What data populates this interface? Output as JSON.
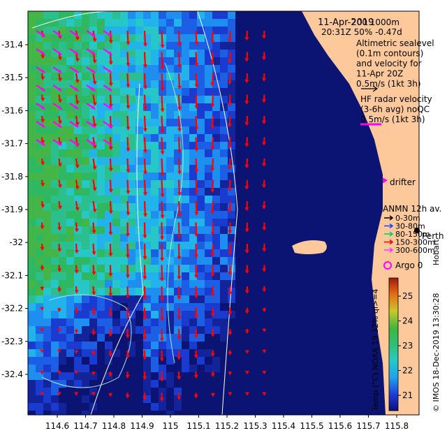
{
  "map": {
    "type": "ocean-sst-velocity-map",
    "date_header": "11-Apr-2019",
    "time_line": "20:31Z  50% -0.47d",
    "isobaths_label": "200  1000m",
    "altimetry_block": [
      "Altimetric sealevel",
      "(0.1m contours)",
      "and velocity for",
      "11-Apr 20Z",
      "0.5m/s (1kt 3h)"
    ],
    "hf_radar_block": [
      "HF radar velocity",
      "(3-6h avg) noQC",
      "0.5m/s (1kt 3h)"
    ],
    "drifter_label": "drifter",
    "anmn_title": "ANMN 12h av.",
    "anmn_depths": [
      "0-30m",
      "30-80m",
      "80-150m",
      "150-300m",
      "300-600m"
    ],
    "anmn_colors": [
      "#000000",
      "#1e3cff",
      "#00cc66",
      "#ff0000",
      "#ff33ff"
    ],
    "argo_label": "Argo 0",
    "city_label": "Perth",
    "side_credit": "Hobart",
    "colorbar_caption": "Temp (°C) NOAA 19 32% ql>=4",
    "colorbar_ticks": [
      "25",
      "24",
      "23",
      "22",
      "21"
    ],
    "credit_vertical": "© IMOS 18-Dec-2019 13:30:28",
    "lat_ticks": [
      "-31.4",
      "-31.5",
      "-31.6",
      "-31.7",
      "-31.8",
      "-31.9",
      "-32",
      "-32.1",
      "-32.2",
      "-32.3",
      "-32.4"
    ],
    "lon_ticks": [
      "114.6",
      "114.7",
      "114.8",
      "114.9",
      "115",
      "115.1",
      "115.2",
      "115.3",
      "115.4",
      "115.5",
      "115.6",
      "115.7",
      "115.8"
    ],
    "colors": {
      "land": "#fdc99b",
      "altimetry_arrow": "#ff0000",
      "hf_arrow": "#ff00ff",
      "isobath": "#ffffff"
    }
  }
}
